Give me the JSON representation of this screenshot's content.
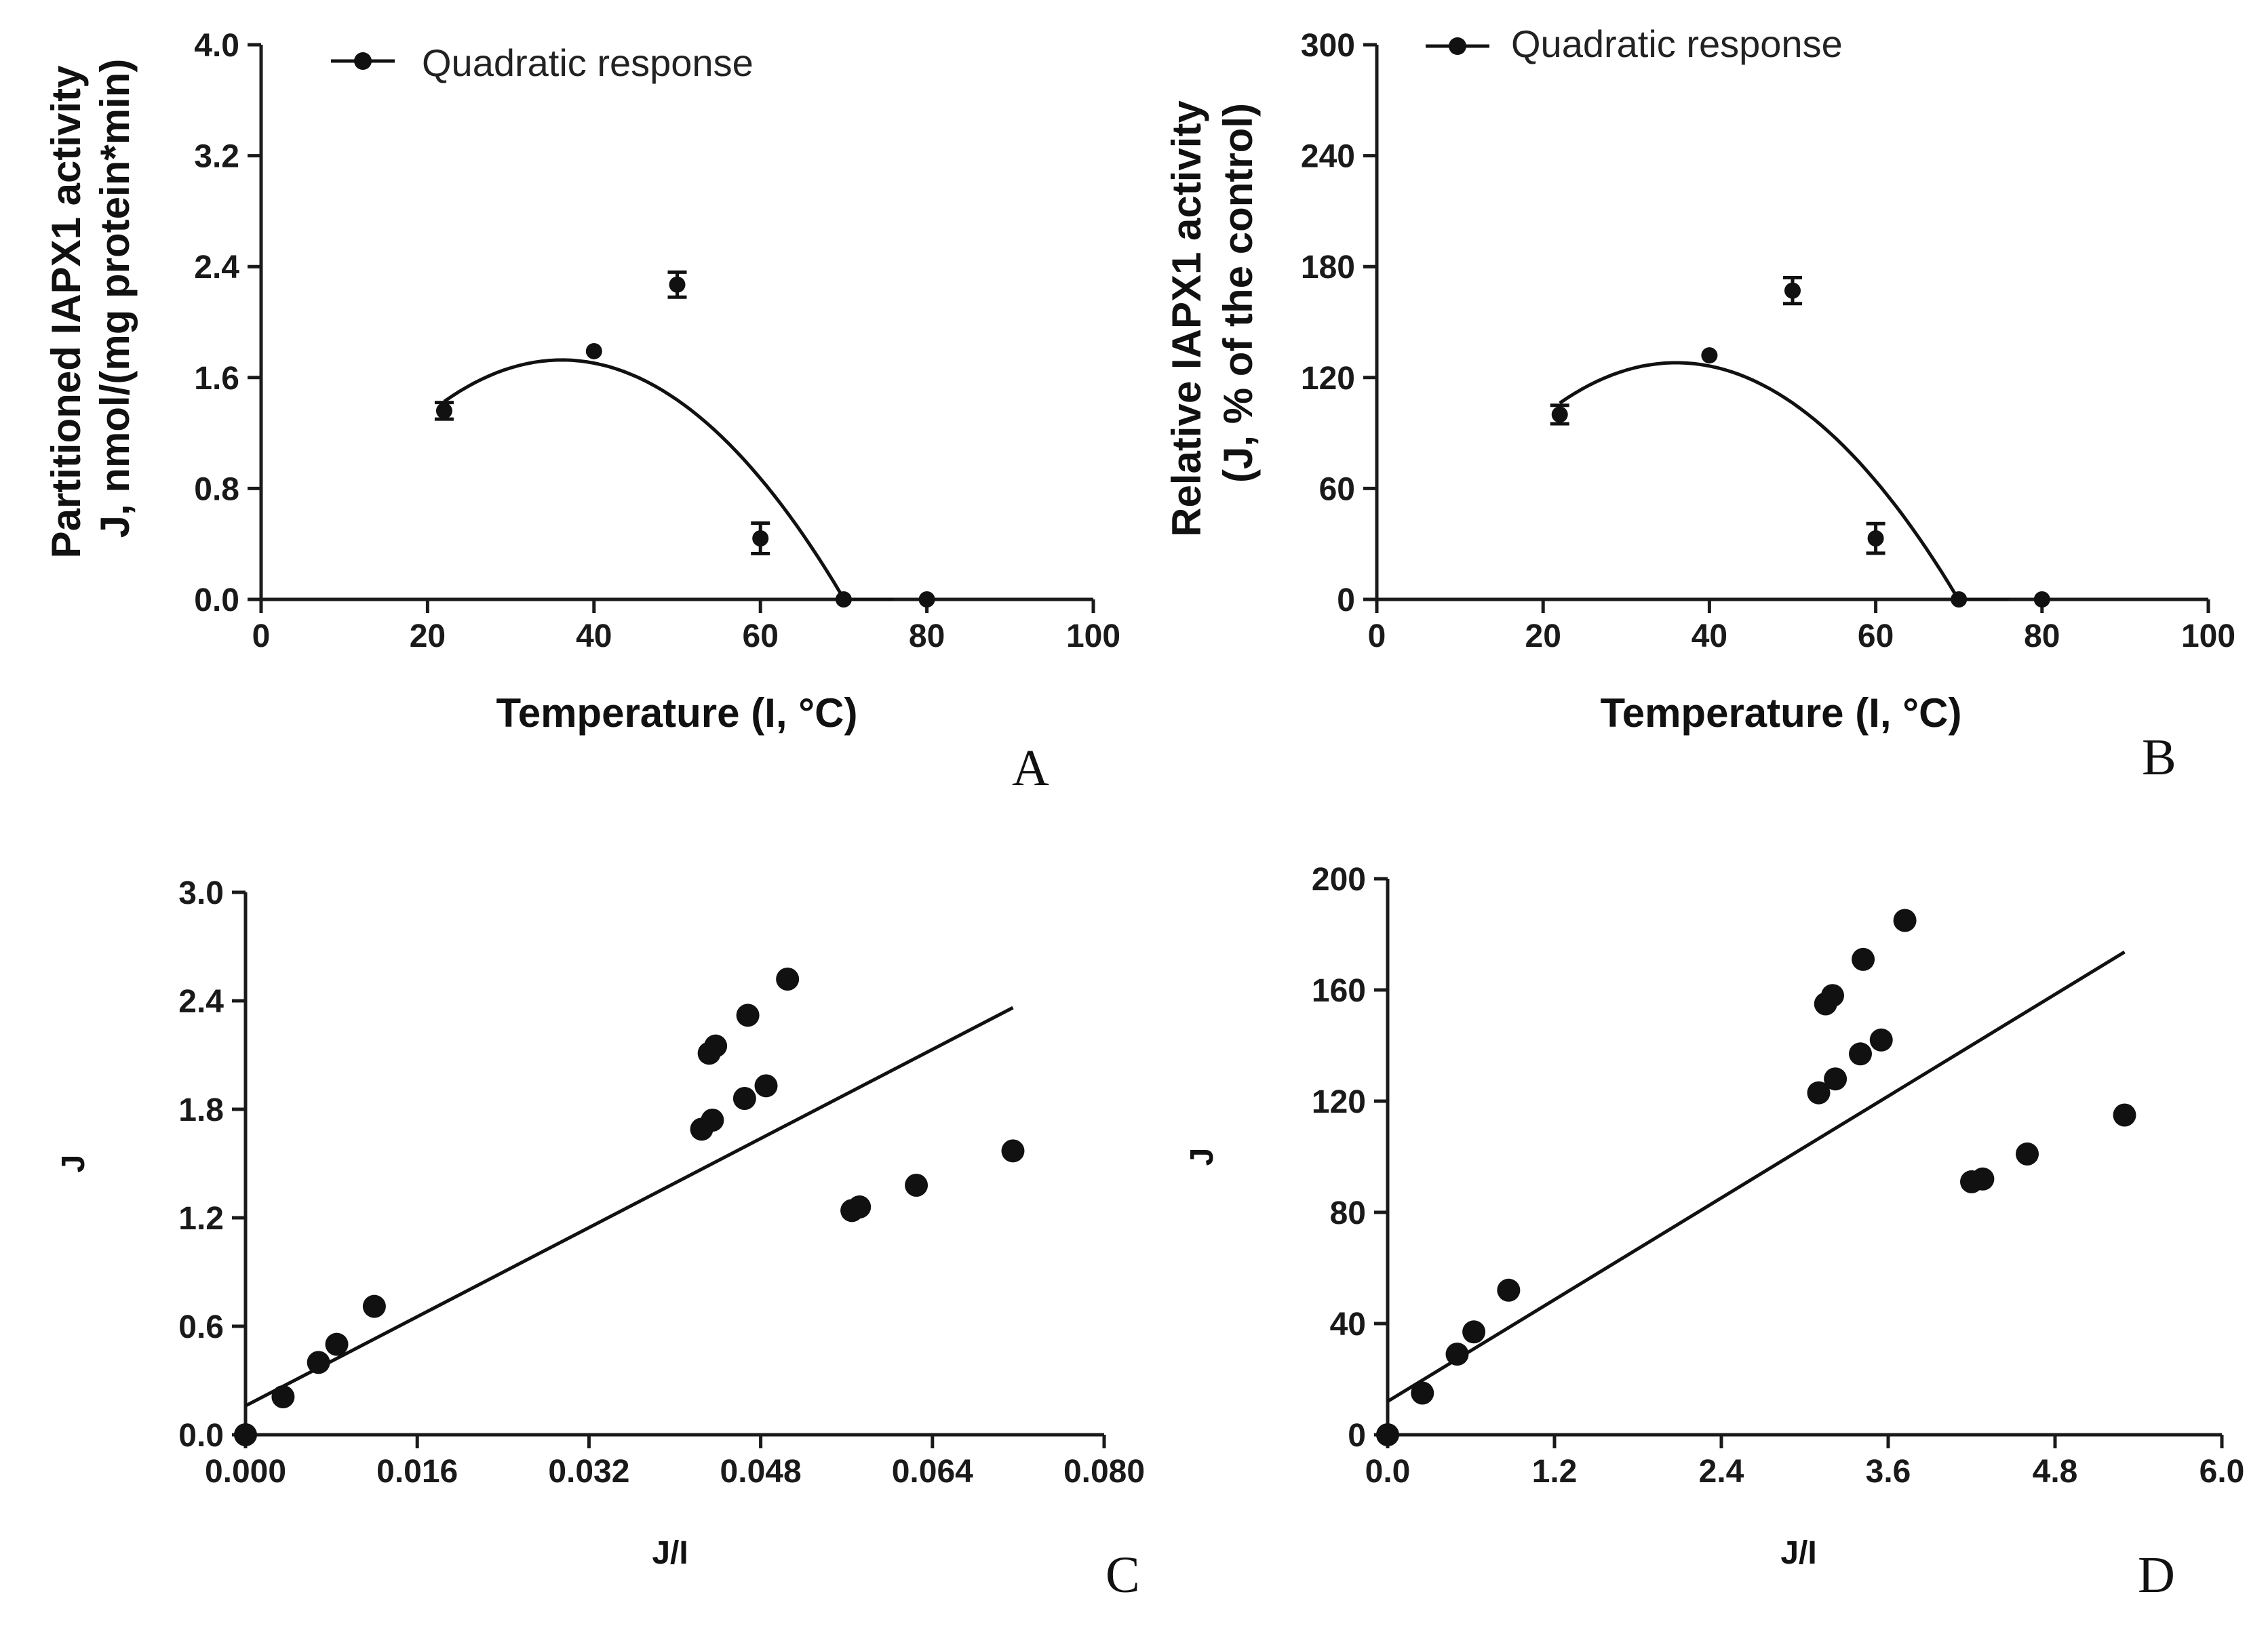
{
  "chart_data": [
    {
      "panel": "A",
      "type": "scatter",
      "legend": "Quadratic response",
      "legend_position": "top-left",
      "xlabel": "Temperature (I, °C)",
      "ylabel_lines": [
        "Partitioned IAPX1 activity",
        "J, nmol/(mg protein*min)"
      ],
      "xlim": [
        0,
        100
      ],
      "ylim": [
        0,
        4.0
      ],
      "xticks": [
        0,
        20,
        40,
        60,
        80,
        100
      ],
      "xtick_labels": [
        "0",
        "20",
        "40",
        "60",
        "80",
        "100"
      ],
      "yticks": [
        0,
        0.8,
        1.6,
        2.4,
        3.2,
        4.0
      ],
      "ytick_labels": [
        "0.0",
        "0.8",
        "1.6",
        "2.4",
        "3.2",
        "4.0"
      ],
      "x": [
        22,
        40,
        50,
        60,
        70,
        80
      ],
      "y": [
        1.36,
        1.79,
        2.27,
        0.44,
        0.0,
        0.0
      ],
      "error": [
        0.06,
        0.0,
        0.09,
        0.11,
        0.0,
        0.0
      ],
      "fit": {
        "kind": "quadratic",
        "x_range": [
          22,
          76
        ],
        "coef": [
          -0.0015,
          0.1084,
          -0.2317
        ]
      }
    },
    {
      "panel": "B",
      "type": "scatter",
      "legend": "Quadratic response",
      "legend_position": "top-left",
      "xlabel": "Temperature (I, °C)",
      "ylabel_lines": [
        "Relative IAPX1 activity",
        "(J, % of the control)"
      ],
      "xlim": [
        0,
        100
      ],
      "ylim": [
        0,
        300
      ],
      "xticks": [
        0,
        20,
        40,
        60,
        80,
        100
      ],
      "xtick_labels": [
        "0",
        "20",
        "40",
        "60",
        "80",
        "100"
      ],
      "yticks": [
        0,
        60,
        120,
        180,
        240,
        300
      ],
      "ytick_labels": [
        "0",
        "60",
        "120",
        "180",
        "240",
        "300"
      ],
      "x": [
        22,
        40,
        50,
        60,
        70,
        80
      ],
      "y": [
        100,
        132,
        167,
        33,
        0,
        0
      ],
      "error": [
        5,
        0,
        7,
        8,
        0,
        0
      ],
      "fit": {
        "kind": "quadratic",
        "x_range": [
          22,
          76
        ],
        "coef": [
          -0.1111,
          8.0,
          -16.0
        ]
      }
    },
    {
      "panel": "C",
      "type": "scatter",
      "xlabel": "J/I",
      "ylabel": "J",
      "xlim": [
        0,
        0.08
      ],
      "ylim": [
        0,
        3.0
      ],
      "xticks": [
        0,
        0.016,
        0.032,
        0.048,
        0.064,
        0.08
      ],
      "xtick_labels": [
        "0.000",
        "0.016",
        "0.032",
        "0.048",
        "0.064",
        "0.080"
      ],
      "yticks": [
        0,
        0.6,
        1.2,
        1.8,
        2.4,
        3.0
      ],
      "ytick_labels": [
        "0.0",
        "0.6",
        "1.2",
        "1.8",
        "2.4",
        "3.0"
      ],
      "x": [
        0.0,
        0.0035,
        0.0068,
        0.0085,
        0.012,
        0.0425,
        0.0435,
        0.0438,
        0.0432,
        0.0465,
        0.0468,
        0.0485,
        0.0505,
        0.0565,
        0.0572,
        0.0625,
        0.0715
      ],
      "y": [
        0.0,
        0.21,
        0.4,
        0.5,
        0.71,
        1.69,
        1.74,
        2.15,
        2.11,
        1.86,
        2.32,
        1.93,
        2.52,
        1.24,
        1.26,
        1.38,
        1.57
      ],
      "fit": {
        "kind": "linear",
        "x_range": [
          0,
          0.0715
        ],
        "slope": 30.8,
        "intercept": 0.16
      }
    },
    {
      "panel": "D",
      "type": "scatter",
      "xlabel": "J/I",
      "ylabel": "J",
      "xlim": [
        0,
        6.0
      ],
      "ylim": [
        0,
        200
      ],
      "xticks": [
        0,
        1.2,
        2.4,
        3.6,
        4.8,
        6.0
      ],
      "xtick_labels": [
        "0.0",
        "1.2",
        "2.4",
        "3.6",
        "4.8",
        "6.0"
      ],
      "yticks": [
        0,
        40,
        80,
        120,
        160,
        200
      ],
      "ytick_labels": [
        "0",
        "40",
        "80",
        "120",
        "160",
        "200"
      ],
      "x": [
        0.0,
        0.25,
        0.5,
        0.62,
        0.87,
        3.1,
        3.15,
        3.2,
        3.22,
        3.4,
        3.42,
        3.55,
        3.72,
        4.2,
        4.28,
        4.6,
        5.3
      ],
      "y": [
        0,
        15,
        29,
        37,
        52,
        123,
        155,
        158,
        128,
        137,
        171,
        142,
        185,
        91,
        92,
        101,
        115
      ],
      "fit": {
        "kind": "linear",
        "x_range": [
          0,
          5.3
        ],
        "slope": 30.5,
        "intercept": 12
      }
    }
  ]
}
